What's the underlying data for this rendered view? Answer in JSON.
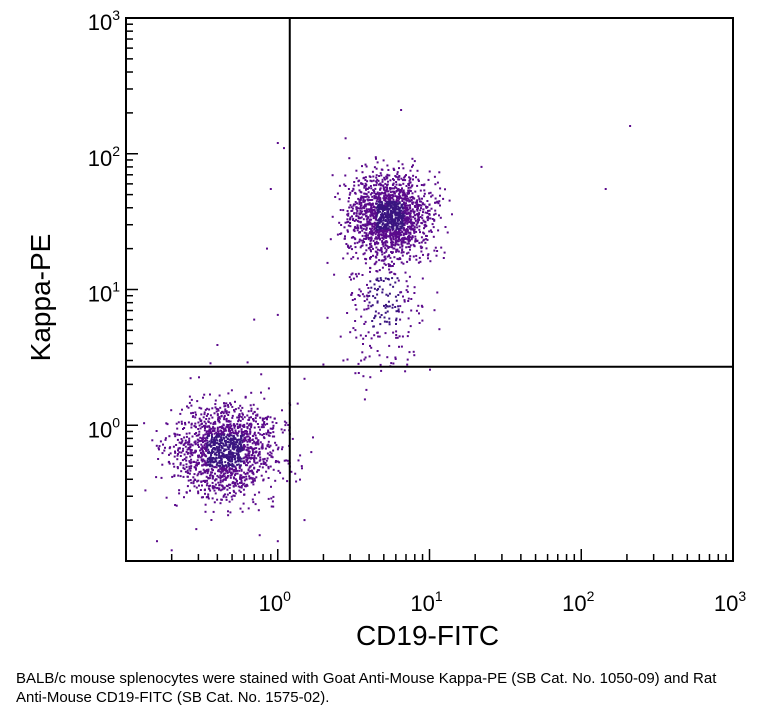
{
  "chart_data": {
    "type": "scatter",
    "title": "",
    "xlabel": "CD19-FITC",
    "ylabel": "Kappa-PE",
    "xscale": "log",
    "yscale": "log",
    "xlim": [
      0.1,
      1000
    ],
    "ylim": [
      0.1,
      1000
    ],
    "x_ticks": [
      {
        "base": "10",
        "exp": "0",
        "value": 1
      },
      {
        "base": "10",
        "exp": "1",
        "value": 10
      },
      {
        "base": "10",
        "exp": "2",
        "value": 100
      },
      {
        "base": "10",
        "exp": "3",
        "value": 1000
      }
    ],
    "y_ticks": [
      {
        "base": "10",
        "exp": "0",
        "value": 1
      },
      {
        "base": "10",
        "exp": "1",
        "value": 10
      },
      {
        "base": "10",
        "exp": "2",
        "value": 100
      },
      {
        "base": "10",
        "exp": "3",
        "value": 1000
      }
    ],
    "quadrant_gates": {
      "x": 1.2,
      "y": 2.7
    },
    "point_color": "#5b0a8c",
    "dense_color": "#3a1480",
    "series": [
      {
        "name": "Kappa- CD19- population",
        "center": [
          0.45,
          0.65
        ],
        "count": 1600,
        "spread_log": [
          0.17,
          0.17
        ]
      },
      {
        "name": "Kappa+ CD19+ population",
        "center": [
          5.5,
          35
        ],
        "count": 1700,
        "spread_log": [
          0.13,
          0.15
        ]
      },
      {
        "name": "Kappa+ CD19+ tail",
        "center": [
          5.0,
          8.0
        ],
        "count": 260,
        "spread_log": [
          0.14,
          0.28
        ]
      }
    ],
    "outliers": [
      [
        1.0,
        120
      ],
      [
        1.1,
        110
      ],
      [
        0.9,
        55
      ],
      [
        0.85,
        20
      ],
      [
        0.4,
        3.9
      ],
      [
        210,
        160
      ],
      [
        145,
        55
      ],
      [
        2.8,
        130
      ],
      [
        3.3,
        75
      ],
      [
        6.5,
        210
      ],
      [
        22,
        80
      ],
      [
        0.7,
        6
      ],
      [
        1.0,
        6.5
      ],
      [
        1.5,
        2.2
      ],
      [
        2.0,
        2.8
      ],
      [
        2.6,
        4.5
      ],
      [
        1.0,
        0.14
      ],
      [
        1.5,
        0.2
      ],
      [
        0.2,
        0.12
      ],
      [
        0.16,
        0.14
      ]
    ]
  },
  "caption": "BALB/c mouse splenocytes were stained with Goat Anti-Mouse Kappa-PE (SB Cat. No. 1050-09) and Rat Anti-Mouse CD19-FITC (SB Cat. No. 1575-02)."
}
